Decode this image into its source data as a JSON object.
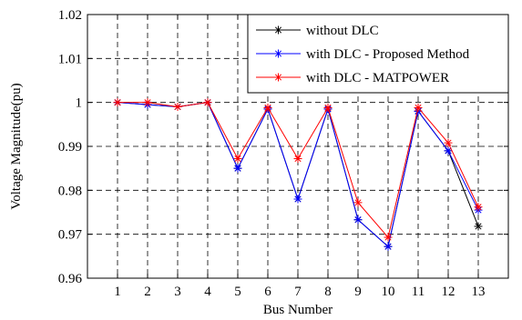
{
  "chart_data": {
    "type": "line",
    "xlabel": "Bus Number",
    "ylabel": "Voltage Magnitude(pu)",
    "x": [
      1,
      2,
      3,
      4,
      5,
      6,
      7,
      8,
      9,
      10,
      11,
      12,
      13
    ],
    "xlim": [
      0,
      14
    ],
    "ylim": [
      0.96,
      1.02
    ],
    "x_ticks": [
      "1",
      "2",
      "3",
      "4",
      "5",
      "6",
      "7",
      "8",
      "9",
      "10",
      "11",
      "12",
      "13"
    ],
    "y_ticks": [
      "0.96",
      "0.97",
      "0.98",
      "0.99",
      "1",
      "1.01",
      "1.02"
    ],
    "y_tick_values": [
      0.96,
      0.97,
      0.98,
      0.99,
      1.0,
      1.01,
      1.02
    ],
    "grid": true,
    "legend_position": "top-right",
    "series": [
      {
        "name": "without DLC",
        "color": "#000000",
        "marker": "asterisk",
        "values": [
          1.0,
          0.9995,
          0.999,
          1.0,
          0.985,
          0.9985,
          0.978,
          0.9985,
          0.9733,
          0.9672,
          0.998,
          0.989,
          0.9718
        ]
      },
      {
        "name": "with DLC - Proposed Method",
        "color": "#0000ff",
        "marker": "asterisk",
        "values": [
          1.0,
          0.9995,
          0.999,
          1.0,
          0.985,
          0.9985,
          0.978,
          0.9985,
          0.9733,
          0.9672,
          0.998,
          0.989,
          0.9755
        ]
      },
      {
        "name": "with DLC - MATPOWER",
        "color": "#ff0000",
        "marker": "asterisk",
        "values": [
          1.0,
          1.0,
          0.999,
          1.0,
          0.9872,
          0.9988,
          0.9872,
          0.9988,
          0.9772,
          0.9693,
          0.9988,
          0.9908,
          0.9762
        ]
      }
    ]
  }
}
